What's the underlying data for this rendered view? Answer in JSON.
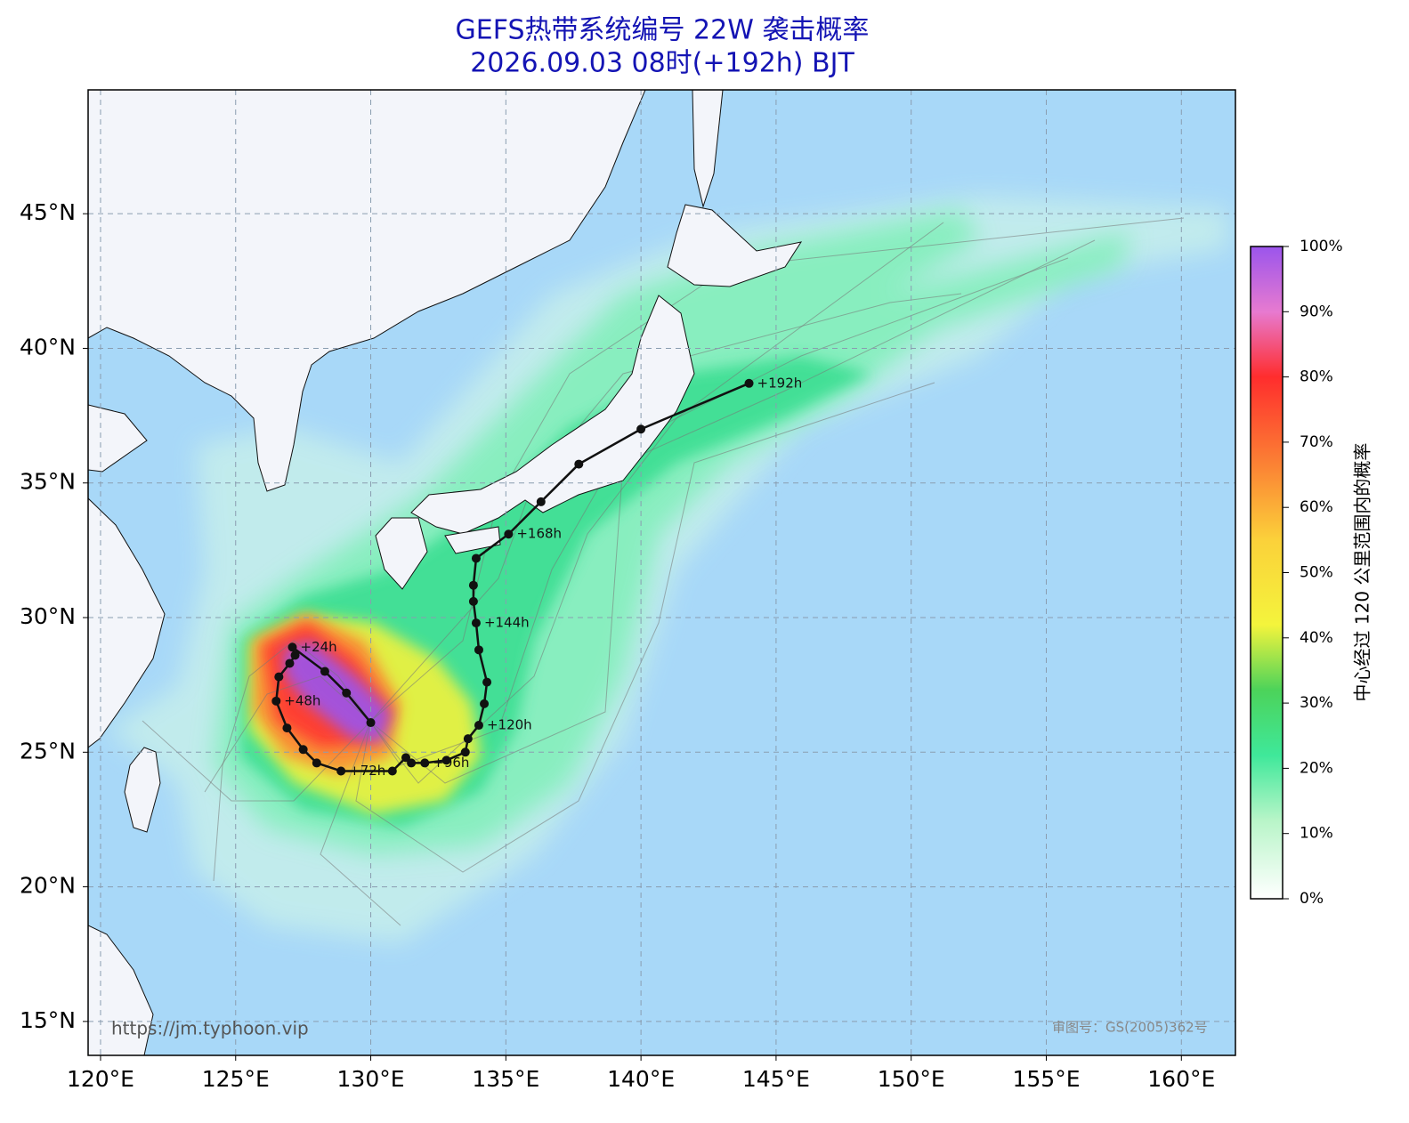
{
  "map": {
    "title": "GEFS热带系统编号 22W 袭击概率",
    "subtitle": "2026.09.03 08时(+192h) BJT",
    "xlim": [
      119.54,
      162.0
    ],
    "ylim": [
      13.74,
      49.6
    ],
    "xticks": [
      {
        "value": 120,
        "label": "120°E"
      },
      {
        "value": 125,
        "label": "125°E"
      },
      {
        "value": 130,
        "label": "130°E"
      },
      {
        "value": 135,
        "label": "135°E"
      },
      {
        "value": 140,
        "label": "140°E"
      },
      {
        "value": 145,
        "label": "145°E"
      },
      {
        "value": 150,
        "label": "150°E"
      },
      {
        "value": 155,
        "label": "155°E"
      },
      {
        "value": 160,
        "label": "160°E"
      }
    ],
    "yticks": [
      {
        "value": 15,
        "label": "15°N"
      },
      {
        "value": 20,
        "label": "20°N"
      },
      {
        "value": 25,
        "label": "25°N"
      },
      {
        "value": 30,
        "label": "30°N"
      },
      {
        "value": 35,
        "label": "35°N"
      },
      {
        "value": 40,
        "label": "40°N"
      },
      {
        "value": 45,
        "label": "45°N"
      }
    ],
    "grid": true,
    "track": {
      "color": "#111111",
      "points": [
        {
          "lon": 130.0,
          "lat": 26.1
        },
        {
          "lon": 129.1,
          "lat": 27.2
        },
        {
          "lon": 128.3,
          "lat": 28.0
        },
        {
          "lon": 127.1,
          "lat": 28.9,
          "label": "+24h"
        },
        {
          "lon": 127.2,
          "lat": 28.6
        },
        {
          "lon": 127.0,
          "lat": 28.3
        },
        {
          "lon": 126.6,
          "lat": 27.8
        },
        {
          "lon": 126.5,
          "lat": 26.9,
          "label": "+48h"
        },
        {
          "lon": 126.9,
          "lat": 25.9
        },
        {
          "lon": 127.5,
          "lat": 25.1
        },
        {
          "lon": 128.0,
          "lat": 24.6
        },
        {
          "lon": 128.9,
          "lat": 24.3,
          "label": "+72h"
        },
        {
          "lon": 130.8,
          "lat": 24.3
        },
        {
          "lon": 131.3,
          "lat": 24.8
        },
        {
          "lon": 131.5,
          "lat": 24.6
        },
        {
          "lon": 132.0,
          "lat": 24.6,
          "label": "+96h"
        },
        {
          "lon": 132.8,
          "lat": 24.7
        },
        {
          "lon": 133.5,
          "lat": 25.0
        },
        {
          "lon": 133.6,
          "lat": 25.5
        },
        {
          "lon": 134.0,
          "lat": 26.0,
          "label": "+120h"
        },
        {
          "lon": 134.2,
          "lat": 26.8
        },
        {
          "lon": 134.3,
          "lat": 27.6
        },
        {
          "lon": 134.0,
          "lat": 28.8
        },
        {
          "lon": 133.9,
          "lat": 29.8,
          "label": "+144h"
        },
        {
          "lon": 133.8,
          "lat": 30.6
        },
        {
          "lon": 133.8,
          "lat": 31.2
        },
        {
          "lon": 133.9,
          "lat": 32.2
        },
        {
          "lon": 135.1,
          "lat": 33.1,
          "label": "+168h"
        },
        {
          "lon": 136.3,
          "lat": 34.3
        },
        {
          "lon": 137.7,
          "lat": 35.7
        },
        {
          "lon": 140.0,
          "lat": 37.0
        },
        {
          "lon": 144.0,
          "lat": 38.7,
          "label": "+192h"
        }
      ]
    },
    "colorbar": {
      "label": "中心经过 120 公里范围内的概率",
      "lim": [
        0,
        100
      ],
      "ticks": [
        {
          "value": 0,
          "label": "0%"
        },
        {
          "value": 10,
          "label": "10%"
        },
        {
          "value": 20,
          "label": "20%"
        },
        {
          "value": 30,
          "label": "30%"
        },
        {
          "value": 40,
          "label": "40%"
        },
        {
          "value": 50,
          "label": "50%"
        },
        {
          "value": 60,
          "label": "60%"
        },
        {
          "value": 70,
          "label": "70%"
        },
        {
          "value": 80,
          "label": "80%"
        },
        {
          "value": 90,
          "label": "90%"
        },
        {
          "value": 100,
          "label": "100%"
        }
      ]
    },
    "watermark_url": "https://jm.typhoon.vip",
    "watermark_license": "审图号：GS(2005)362号"
  }
}
